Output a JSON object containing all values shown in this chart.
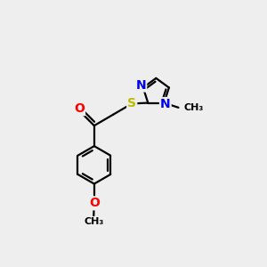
{
  "background_color": "#eeeeee",
  "bond_color": "#000000",
  "bond_width": 1.6,
  "atom_colors": {
    "O": "#ff0000",
    "N": "#0000ee",
    "S": "#bbbb00",
    "C": "#000000"
  },
  "font_size_atom": 10,
  "font_size_small": 9
}
